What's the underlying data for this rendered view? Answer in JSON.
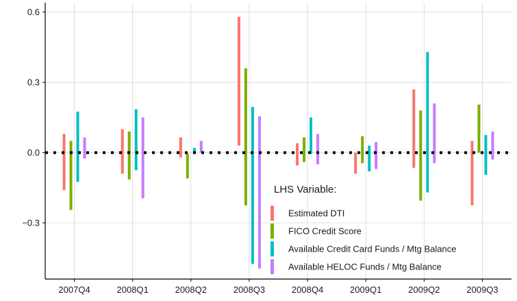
{
  "chart_data": {
    "type": "bar",
    "subtype": "floating-range",
    "categories": [
      "2007Q4",
      "2008Q1",
      "2008Q2",
      "2008Q3",
      "2008Q4",
      "2009Q1",
      "2009Q2",
      "2009Q3"
    ],
    "yticks": [
      "0.6",
      "0.3",
      "0.0",
      "−0.3"
    ],
    "ytick_values": [
      0.6,
      0.3,
      0.0,
      -0.3
    ],
    "ylim": [
      -0.54,
      0.64
    ],
    "grid": true,
    "zero_line": "dotted",
    "legend": {
      "title": "LHS Variable:",
      "placement": "bottom-right-inside"
    },
    "series": [
      {
        "name": "Estimated DTI",
        "color": "#F8766D",
        "ranges": [
          [
            -0.16,
            0.08
          ],
          [
            -0.09,
            0.1
          ],
          [
            -0.02,
            0.065
          ],
          [
            0.03,
            0.58
          ],
          [
            -0.055,
            0.04
          ],
          [
            -0.09,
            0.0
          ],
          [
            -0.065,
            0.27
          ],
          [
            -0.225,
            0.05
          ]
        ]
      },
      {
        "name": "FICO Credit Score",
        "color": "#7CAE00",
        "ranges": [
          [
            -0.245,
            0.05
          ],
          [
            -0.115,
            0.09
          ],
          [
            -0.11,
            -0.005
          ],
          [
            -0.225,
            0.36
          ],
          [
            -0.04,
            0.065
          ],
          [
            -0.045,
            0.07
          ],
          [
            -0.205,
            0.18
          ],
          [
            0.0,
            0.205
          ]
        ]
      },
      {
        "name": "Available Credit Card Funds / Mtg Balance",
        "color": "#00BFC4",
        "ranges": [
          [
            -0.125,
            0.175
          ],
          [
            -0.075,
            0.185
          ],
          [
            -0.005,
            0.02
          ],
          [
            -0.475,
            0.195
          ],
          [
            -0.005,
            0.15
          ],
          [
            -0.08,
            0.03
          ],
          [
            -0.17,
            0.43
          ],
          [
            -0.095,
            0.075
          ]
        ]
      },
      {
        "name": "Available HELOC Funds / Mtg Balance",
        "color": "#C77CFF",
        "ranges": [
          [
            -0.025,
            0.065
          ],
          [
            -0.195,
            0.15
          ],
          [
            0.0,
            0.05
          ],
          [
            -0.495,
            0.155
          ],
          [
            -0.05,
            0.08
          ],
          [
            -0.07,
            0.045
          ],
          [
            -0.045,
            0.21
          ],
          [
            -0.03,
            0.09
          ]
        ]
      }
    ]
  }
}
